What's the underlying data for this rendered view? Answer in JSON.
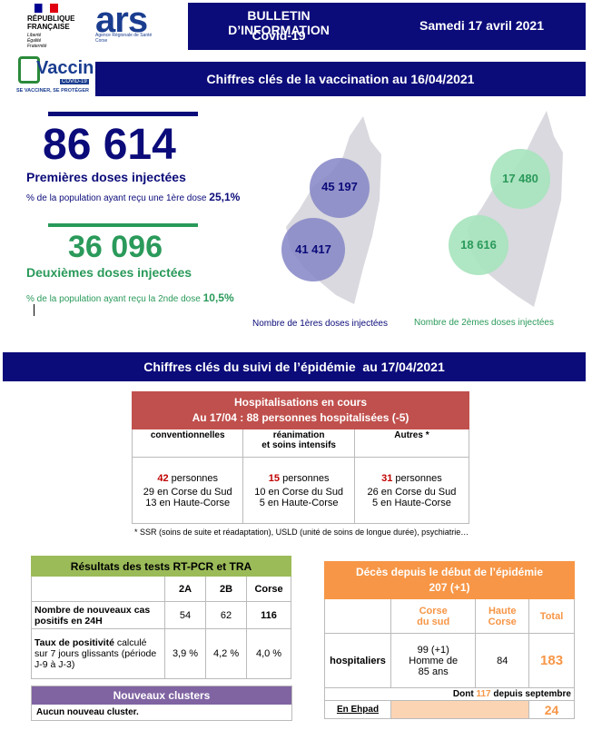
{
  "header": {
    "republique": [
      "RÉPUBLIQUE",
      "FRANÇAISE"
    ],
    "motto": [
      "Liberté",
      "Égalité",
      "Fraternité"
    ],
    "ars": "ars",
    "agency": "Agence Régionale de Santé Corse",
    "title": "BULLETIN D’INFORMATION",
    "subtitle": "Covid-19",
    "date": "Samedi 17 avril 2021"
  },
  "vaccin_logo": {
    "name": "Vaccin",
    "tag": "COVID-19",
    "slogan": "SE VACCINER, SE PROTÉGER"
  },
  "vaccination": {
    "title": "Chiffres clés de la vaccination au 16/04/2021",
    "first_doses": {
      "count": "86 614",
      "label": "Premières doses injectées",
      "pct_text": "% de la population ayant reçu une 1ère dose",
      "pct": "25,1%"
    },
    "second_doses": {
      "count": "36 096",
      "label": "Deuxièmes doses injectées",
      "pct_text": "% de la population ayant reçu la 2nde dose",
      "pct": "10,5%"
    },
    "map_first": {
      "values": [
        "45 197",
        "41 417"
      ],
      "caption": "Nombre de 1ères doses injectées"
    },
    "map_second": {
      "values": [
        "17 480",
        "18 616"
      ],
      "caption": "Nombre de 2èmes doses injectées"
    }
  },
  "epidemie": {
    "title": "Chiffres clés du suivi de l’épidémie  au 17/04/2021"
  },
  "hospitalisations": {
    "title": "Hospitalisations en cours",
    "subtitle": "Au 17/04 : 88 personnes hospitalisées (-5)",
    "columns": [
      "conventionnelles",
      "réanimation\net soins intensifs",
      "Autres *"
    ],
    "cells": [
      {
        "count": "42",
        "unit": "personnes",
        "lines": [
          "29 en Corse du Sud",
          "13 en Haute-Corse"
        ]
      },
      {
        "count": "15",
        "unit": "personnes",
        "lines": [
          "10 en Corse du Sud",
          "5 en Haute-Corse"
        ]
      },
      {
        "count": "31",
        "unit": "personnes",
        "lines": [
          "26 en Corse du Sud",
          "5 en Haute-Corse"
        ]
      }
    ],
    "footnote": "* SSR (soins de suite et réadaptation), USLD (unité de soins de longue durée), psychiatrie…"
  },
  "tests": {
    "title": "Résultats des tests RT-PCR et TRA",
    "columns": [
      "2A",
      "2B",
      "Corse"
    ],
    "rows": [
      {
        "label_bold": "Nombre de nouveaux cas positifs en 24H",
        "label_rest": "",
        "values": [
          "54",
          "62",
          "116"
        ]
      },
      {
        "label_bold": "Taux de positivité",
        "label_rest": " calculé sur 7 jours glissants (période J-9 à J-3)",
        "values": [
          "3,9 %",
          "4,2 %",
          "4,0 %"
        ]
      }
    ]
  },
  "deces": {
    "title": "Décès depuis le début de l’épidémie",
    "subtitle": "207 (+1)",
    "columns": [
      "Corse\ndu sud",
      "Haute\nCorse",
      "Total"
    ],
    "hospitaliers": {
      "label": "hospitaliers",
      "values": [
        "99 (+1)\nHomme de\n85 ans",
        "84",
        "183"
      ]
    },
    "note": {
      "before": "Dont",
      "number": "117",
      "after": "depuis septembre"
    },
    "ehpad": {
      "label": "En Ehpad",
      "total": "24"
    }
  },
  "clusters": {
    "title": "Nouveaux clusters",
    "text": "Aucun nouveau cluster."
  }
}
